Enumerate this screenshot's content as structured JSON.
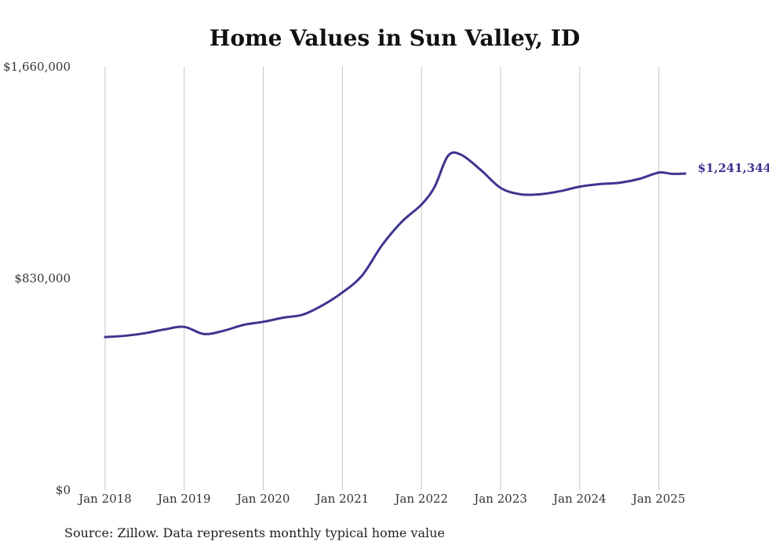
{
  "chart_data": {
    "type": "line",
    "title": "Home Values in Sun Valley, ID",
    "xlabel": "",
    "ylabel": "",
    "source_note": "Source: Zillow. Data represents monthly typical home value",
    "ylim": [
      0,
      1660000
    ],
    "y_ticks": [
      {
        "value": 0,
        "label": "$0"
      },
      {
        "value": 830000,
        "label": "$830,000"
      },
      {
        "value": 1660000,
        "label": "$1,660,000"
      }
    ],
    "x_ticks": [
      {
        "x": "2018-01",
        "label": "Jan 2018"
      },
      {
        "x": "2019-01",
        "label": "Jan 2019"
      },
      {
        "x": "2020-01",
        "label": "Jan 2020"
      },
      {
        "x": "2021-01",
        "label": "Jan 2021"
      },
      {
        "x": "2022-01",
        "label": "Jan 2022"
      },
      {
        "x": "2023-01",
        "label": "Jan 2023"
      },
      {
        "x": "2024-01",
        "label": "Jan 2024"
      },
      {
        "x": "2025-01",
        "label": "Jan 2025"
      }
    ],
    "x_range": [
      "2018-01",
      "2025-05"
    ],
    "grid": {
      "vertical": true,
      "horizontal": false
    },
    "line_color": "#3d3590",
    "end_label": "$1,241,344",
    "series": [
      {
        "x": [
          "2018-01",
          "2018-04",
          "2018-07",
          "2018-10",
          "2019-01",
          "2019-04",
          "2019-07",
          "2019-10",
          "2020-01",
          "2020-04",
          "2020-07",
          "2020-10",
          "2021-01",
          "2021-04",
          "2021-07",
          "2021-10",
          "2022-01",
          "2022-03",
          "2022-05",
          "2022-07",
          "2022-10",
          "2023-01",
          "2023-04",
          "2023-07",
          "2023-10",
          "2024-01",
          "2024-04",
          "2024-07",
          "2024-10",
          "2025-01",
          "2025-03",
          "2025-05"
        ],
        "values": [
          600000,
          605000,
          615000,
          630000,
          640000,
          612000,
          625000,
          648000,
          660000,
          676000,
          688000,
          725000,
          775000,
          842000,
          960000,
          1052000,
          1120000,
          1190000,
          1310000,
          1315000,
          1255000,
          1185000,
          1160000,
          1160000,
          1172000,
          1190000,
          1200000,
          1205000,
          1220000,
          1245000,
          1240000,
          1241344
        ]
      }
    ]
  }
}
